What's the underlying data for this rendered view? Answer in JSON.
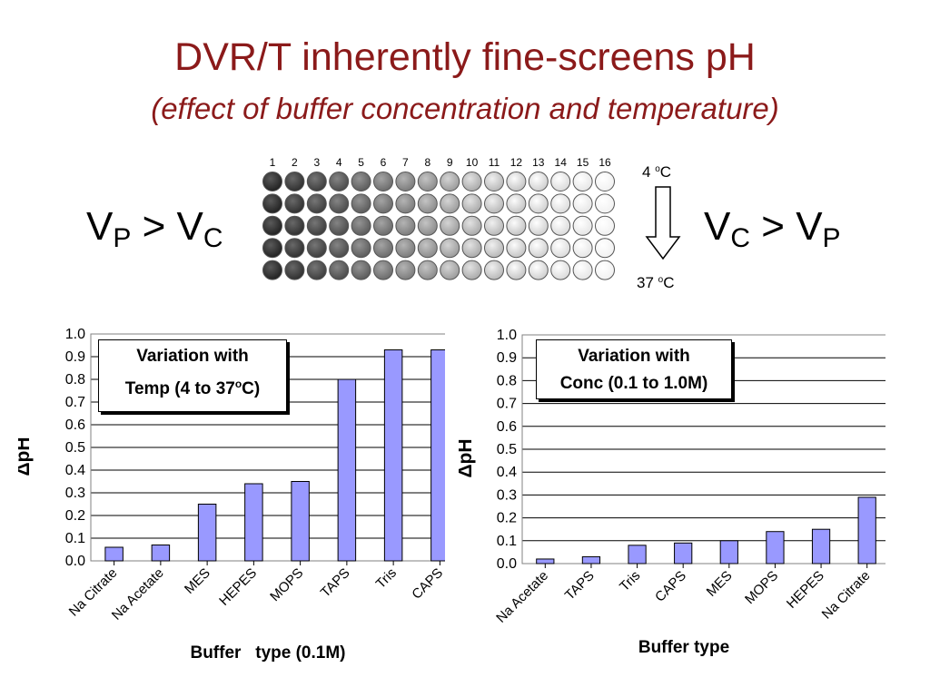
{
  "slide": {
    "title": "DVR/T inherently fine-screens pH",
    "subtitle": "(effect of buffer concentration and temperature)",
    "left_relation": {
      "v1": "V",
      "s1": "P",
      "op": " > ",
      "v2": "V",
      "s2": "C"
    },
    "right_relation": {
      "v1": "V",
      "s1": "C",
      "op": " > ",
      "v2": "V",
      "s2": "P"
    },
    "temp_top": {
      "value": "4 ",
      "sup": "o",
      "unit": "C"
    },
    "temp_bottom": {
      "value": "37 ",
      "sup": "o",
      "unit": "C"
    }
  },
  "plate": {
    "columns": [
      "1",
      "2",
      "3",
      "4",
      "5",
      "6",
      "7",
      "8",
      "9",
      "10",
      "11",
      "12",
      "13",
      "14",
      "15",
      "16"
    ],
    "rows": 5,
    "gray_levels": [
      30,
      44,
      58,
      72,
      88,
      104,
      120,
      136,
      152,
      166,
      180,
      192,
      204,
      216,
      228,
      240
    ],
    "well_stroke": "#555555"
  },
  "colors": {
    "bar": "#9999ff",
    "bar_stroke": "#000000",
    "grid": "#000000",
    "title": "#8b1a1a"
  },
  "chart_data": [
    {
      "type": "bar",
      "box_line1": "Variation with",
      "box_line2_pre": "Temp (4 to 37",
      "box_line2_sup": "o",
      "box_line2_post": "C)",
      "ylabel": "ΔpH",
      "xlabel": "Buffer   type (0.1M)",
      "ylim": [
        0,
        1.0
      ],
      "yticks": [
        "0.0",
        "0.1",
        "0.2",
        "0.3",
        "0.4",
        "0.5",
        "0.6",
        "0.7",
        "0.8",
        "0.9",
        "1.0"
      ],
      "categories": [
        "Na Citrate",
        "Na Acetate",
        "MES",
        "HEPES",
        "MOPS",
        "TAPS",
        "Tris",
        "CAPS"
      ],
      "values": [
        0.06,
        0.07,
        0.25,
        0.34,
        0.35,
        0.8,
        0.93,
        0.93
      ],
      "grid": true
    },
    {
      "type": "bar",
      "box_line1": "Variation with",
      "box_line2": "Conc (0.1 to 1.0M)",
      "ylabel": "ΔpH",
      "xlabel": "Buffer type",
      "ylim": [
        0,
        1.0
      ],
      "yticks": [
        "0.0",
        "0.1",
        "0.2",
        "0.3",
        "0.4",
        "0.5",
        "0.6",
        "0.7",
        "0.8",
        "0.9",
        "1.0"
      ],
      "categories": [
        "Na Acetate",
        "TAPS",
        "Tris",
        "CAPS",
        "MES",
        "MOPS",
        "HEPES",
        "Na Citrate"
      ],
      "values": [
        0.02,
        0.03,
        0.08,
        0.09,
        0.1,
        0.14,
        0.15,
        0.29
      ],
      "grid": true
    }
  ]
}
